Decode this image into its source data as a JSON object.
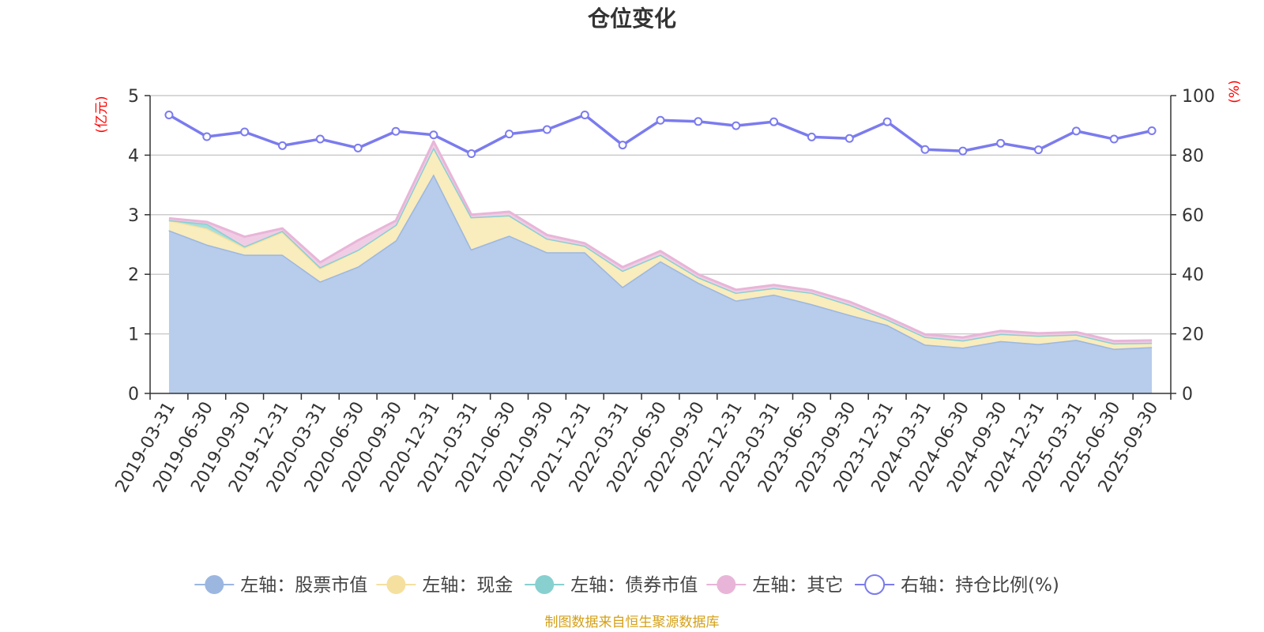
{
  "chart_data": {
    "type": "area",
    "title": "仓位变化",
    "x": [
      "2019-03-31",
      "2019-06-30",
      "2019-09-30",
      "2019-12-31",
      "2020-03-31",
      "2020-06-30",
      "2020-09-30",
      "2020-12-31",
      "2021-03-31",
      "2021-06-30",
      "2021-09-30",
      "2021-12-31",
      "2022-03-31",
      "2022-06-30",
      "2022-09-30",
      "2022-12-31",
      "2023-03-31",
      "2023-06-30",
      "2023-09-30",
      "2023-12-31",
      "2024-03-31",
      "2024-06-30",
      "2024-09-30",
      "2024-12-31",
      "2025-03-31",
      "2025-06-30",
      "2025-09-30"
    ],
    "left_axis": {
      "unit": "(亿元)",
      "ylim": [
        0,
        5
      ],
      "ticks": [
        "0",
        "1",
        "2",
        "3",
        "4",
        "5"
      ]
    },
    "right_axis": {
      "unit": "(%)",
      "ylim": [
        0,
        100
      ],
      "ticks": [
        "0",
        "20",
        "40",
        "60",
        "80",
        "100"
      ]
    },
    "series": [
      {
        "name": "左轴：股票市值",
        "axis": "left",
        "stack": true,
        "color": "#9bb7e0",
        "fill": "#b8cceb",
        "values": [
          2.74,
          2.5,
          2.33,
          2.33,
          1.88,
          2.13,
          2.57,
          3.68,
          2.42,
          2.65,
          2.37,
          2.37,
          1.79,
          2.22,
          1.86,
          1.56,
          1.66,
          1.5,
          1.32,
          1.15,
          0.82,
          0.77,
          0.88,
          0.83,
          0.9,
          0.75,
          0.78
        ]
      },
      {
        "name": "左轴：现金",
        "axis": "left",
        "stack": true,
        "color": "#f5e0a0",
        "fill": "#f9ecbd",
        "values": [
          0.17,
          0.27,
          0.12,
          0.38,
          0.22,
          0.28,
          0.26,
          0.45,
          0.54,
          0.34,
          0.23,
          0.11,
          0.27,
          0.11,
          0.09,
          0.13,
          0.11,
          0.19,
          0.17,
          0.09,
          0.13,
          0.12,
          0.12,
          0.14,
          0.09,
          0.09,
          0.07
        ]
      },
      {
        "name": "左轴：债券市值",
        "axis": "left",
        "stack": true,
        "color": "#88d0d0",
        "fill": "#a7dddc",
        "values": [
          0,
          0.08,
          0.02,
          0.02,
          0.02,
          0,
          0,
          0,
          0,
          0,
          0,
          0,
          0,
          0,
          0,
          0,
          0,
          0,
          0,
          0,
          0,
          0,
          0,
          0,
          0,
          0,
          0
        ]
      },
      {
        "name": "左轴：其它",
        "axis": "left",
        "stack": true,
        "color": "#e8b5d8",
        "fill": "#f0cde5",
        "values": [
          0.03,
          0.03,
          0.16,
          0.04,
          0.08,
          0.16,
          0.07,
          0.1,
          0.04,
          0.06,
          0.06,
          0.04,
          0.06,
          0.06,
          0.05,
          0.05,
          0.05,
          0.04,
          0.05,
          0.04,
          0.04,
          0.05,
          0.05,
          0.04,
          0.04,
          0.04,
          0.04
        ]
      },
      {
        "name": "右轴：持仓比例(%)",
        "axis": "right",
        "stack": false,
        "color": "#7b7bef",
        "values": [
          93.5,
          86.2,
          87.8,
          83.2,
          85.4,
          82.4,
          88.0,
          86.8,
          80.5,
          87.1,
          88.6,
          93.5,
          83.4,
          91.7,
          91.3,
          89.9,
          91.2,
          86.1,
          85.6,
          91.2,
          81.9,
          81.4,
          84.0,
          81.8,
          88.1,
          85.4,
          88.2
        ]
      }
    ],
    "source": "制图数据来自恒生聚源数据库",
    "colors": {
      "unit": "#ff0000",
      "source": "#d4a017",
      "axis": "#333333",
      "grid": "#cccccc"
    }
  }
}
